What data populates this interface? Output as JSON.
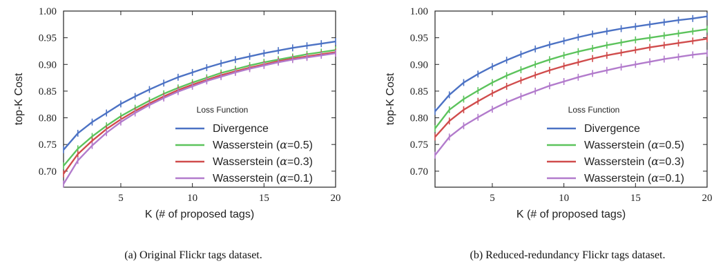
{
  "chart_data": [
    {
      "type": "line",
      "panel": "a",
      "caption": "(a) Original Flickr tags dataset.",
      "xlabel": "K (# of proposed tags)",
      "ylabel": "top-K Cost",
      "xlim": [
        1,
        20
      ],
      "ylim": [
        0.67,
        1.0
      ],
      "xticks": [
        5,
        10,
        15,
        20
      ],
      "yticks": [
        "0.70",
        "0.75",
        "0.80",
        "0.85",
        "0.90",
        "0.95",
        "1.00"
      ],
      "grid": false,
      "legend": {
        "title": "Loss Function",
        "placement": "lower-right"
      },
      "x": [
        1,
        2,
        3,
        4,
        5,
        6,
        7,
        8,
        9,
        10,
        11,
        12,
        13,
        14,
        15,
        16,
        17,
        18,
        19,
        20
      ],
      "series": [
        {
          "name": "Divergence",
          "color": "#4c72c4",
          "values": [
            0.74,
            0.771,
            0.792,
            0.809,
            0.826,
            0.84,
            0.853,
            0.865,
            0.876,
            0.885,
            0.894,
            0.902,
            0.909,
            0.915,
            0.921,
            0.926,
            0.931,
            0.935,
            0.939,
            0.943
          ]
        },
        {
          "name": "Wasserstein (α=0.5)",
          "color": "#5cc35c",
          "values": [
            0.71,
            0.742,
            0.765,
            0.785,
            0.803,
            0.818,
            0.832,
            0.845,
            0.856,
            0.866,
            0.875,
            0.884,
            0.891,
            0.898,
            0.904,
            0.909,
            0.914,
            0.919,
            0.923,
            0.927
          ]
        },
        {
          "name": "Wasserstein (α=0.3)",
          "color": "#d04c4c",
          "values": [
            0.695,
            0.732,
            0.757,
            0.779,
            0.797,
            0.813,
            0.827,
            0.84,
            0.852,
            0.862,
            0.871,
            0.88,
            0.887,
            0.894,
            0.9,
            0.906,
            0.911,
            0.915,
            0.919,
            0.923
          ]
        },
        {
          "name": "Wasserstein (α=0.1)",
          "color": "#b27bcc",
          "values": [
            0.676,
            0.72,
            0.748,
            0.772,
            0.792,
            0.809,
            0.824,
            0.837,
            0.849,
            0.859,
            0.869,
            0.877,
            0.885,
            0.892,
            0.898,
            0.904,
            0.909,
            0.913,
            0.917,
            0.921
          ]
        }
      ]
    },
    {
      "type": "line",
      "panel": "b",
      "caption": "(b) Reduced-redundancy Flickr tags dataset.",
      "xlabel": "K (# of proposed tags)",
      "ylabel": "top-K Cost",
      "xlim": [
        1,
        20
      ],
      "ylim": [
        0.67,
        1.0
      ],
      "xticks": [
        5,
        10,
        15,
        20
      ],
      "yticks": [
        "0.70",
        "0.75",
        "0.80",
        "0.85",
        "0.90",
        "0.95",
        "1.00"
      ],
      "grid": false,
      "legend": {
        "title": "Loss Function",
        "placement": "lower-right"
      },
      "x": [
        1,
        2,
        3,
        4,
        5,
        6,
        7,
        8,
        9,
        10,
        11,
        12,
        13,
        14,
        15,
        16,
        17,
        18,
        19,
        20
      ],
      "series": [
        {
          "name": "Divergence",
          "color": "#4c72c4",
          "values": [
            0.812,
            0.843,
            0.866,
            0.882,
            0.896,
            0.908,
            0.919,
            0.929,
            0.937,
            0.944,
            0.951,
            0.957,
            0.962,
            0.967,
            0.971,
            0.975,
            0.979,
            0.983,
            0.986,
            0.99
          ]
        },
        {
          "name": "Wasserstein (α=0.5)",
          "color": "#5cc35c",
          "values": [
            0.78,
            0.815,
            0.835,
            0.851,
            0.866,
            0.879,
            0.89,
            0.9,
            0.909,
            0.917,
            0.924,
            0.93,
            0.936,
            0.941,
            0.946,
            0.95,
            0.954,
            0.958,
            0.962,
            0.966
          ]
        },
        {
          "name": "Wasserstein (α=0.3)",
          "color": "#d04c4c",
          "values": [
            0.764,
            0.794,
            0.815,
            0.831,
            0.846,
            0.859,
            0.87,
            0.88,
            0.889,
            0.897,
            0.904,
            0.911,
            0.917,
            0.922,
            0.927,
            0.932,
            0.936,
            0.94,
            0.944,
            0.948
          ]
        },
        {
          "name": "Wasserstein (α=0.1)",
          "color": "#b27bcc",
          "values": [
            0.73,
            0.764,
            0.785,
            0.801,
            0.816,
            0.829,
            0.84,
            0.85,
            0.86,
            0.868,
            0.876,
            0.883,
            0.889,
            0.895,
            0.9,
            0.905,
            0.91,
            0.914,
            0.918,
            0.921
          ]
        }
      ]
    }
  ]
}
